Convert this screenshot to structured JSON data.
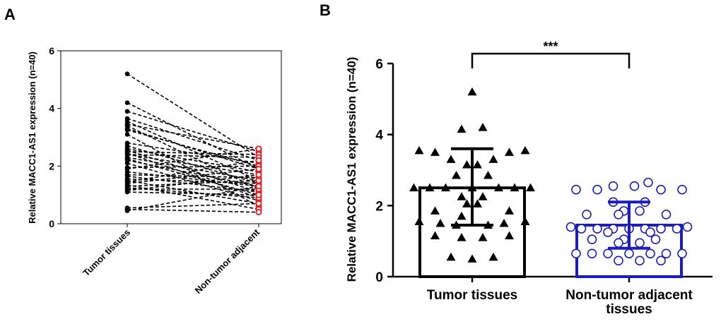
{
  "chart_data": [
    {
      "panel": "A",
      "type": "scatter",
      "title": "",
      "ylabel": "Relative MACC1-AS1 expression (n=40)",
      "categories": [
        "Tumor tissues",
        "Non-tumor adjacent"
      ],
      "ylim": [
        0,
        6
      ],
      "yticks": [
        0,
        2,
        4,
        6
      ],
      "series_colors": {
        "tumor": "#000000",
        "normal": "#e8141a"
      },
      "pairs": [
        [
          5.2,
          2.3
        ],
        [
          4.2,
          1.9
        ],
        [
          3.9,
          2.5
        ],
        [
          3.65,
          2.2
        ],
        [
          3.55,
          1.5
        ],
        [
          3.45,
          2.6
        ],
        [
          3.4,
          1.2
        ],
        [
          3.3,
          1.9
        ],
        [
          3.25,
          2.0
        ],
        [
          3.1,
          0.6
        ],
        [
          2.8,
          2.1
        ],
        [
          2.7,
          1.4
        ],
        [
          2.6,
          1.8
        ],
        [
          2.55,
          1.1
        ],
        [
          2.5,
          2.4
        ],
        [
          2.45,
          0.9
        ],
        [
          2.4,
          1.7
        ],
        [
          2.4,
          2.3
        ],
        [
          2.3,
          1.5
        ],
        [
          2.25,
          1.0
        ],
        [
          2.2,
          1.3
        ],
        [
          2.1,
          0.8
        ],
        [
          1.95,
          2.0
        ],
        [
          1.9,
          2.6
        ],
        [
          1.8,
          1.3
        ],
        [
          1.7,
          1.6
        ],
        [
          1.65,
          1.1
        ],
        [
          1.55,
          1.4
        ],
        [
          1.5,
          0.7
        ],
        [
          1.45,
          2.2
        ],
        [
          1.4,
          1.9
        ],
        [
          1.35,
          0.5
        ],
        [
          1.3,
          1.5
        ],
        [
          1.25,
          0.9
        ],
        [
          1.2,
          1.2
        ],
        [
          1.15,
          1.7
        ],
        [
          1.1,
          1.0
        ],
        [
          0.55,
          0.7
        ],
        [
          0.5,
          0.4
        ],
        [
          0.45,
          1.3
        ]
      ]
    },
    {
      "panel": "B",
      "type": "bar",
      "title": "",
      "ylabel": "Relative MACC1-AS1 expression (n=40)",
      "categories": [
        "Tumor tissues",
        "Non-tumor adjacent tissues"
      ],
      "category_lines": [
        [
          "Tumor tissues"
        ],
        [
          "Non-tumor adjacent",
          "tissues"
        ]
      ],
      "ylim": [
        0,
        6
      ],
      "yticks": [
        0,
        2,
        4,
        6
      ],
      "significance": "***",
      "series": [
        {
          "name": "Tumor tissues",
          "color": "#000000",
          "marker": "triangle",
          "mean": 2.5,
          "sd_low": 1.45,
          "sd_high": 3.6,
          "points": [
            [
              0,
              5.2
            ],
            [
              0.1,
              4.2
            ],
            [
              -0.1,
              4.15
            ],
            [
              -0.5,
              3.55
            ],
            [
              0.5,
              3.55
            ],
            [
              -0.35,
              3.5
            ],
            [
              0.35,
              3.5
            ],
            [
              -0.2,
              3.3
            ],
            [
              0.2,
              3.3
            ],
            [
              -0.05,
              3.15
            ],
            [
              0.05,
              3.15
            ],
            [
              -0.15,
              2.85
            ],
            [
              0.15,
              2.85
            ],
            [
              -0.55,
              2.5
            ],
            [
              0.55,
              2.5
            ],
            [
              -0.4,
              2.5
            ],
            [
              0.4,
              2.5
            ],
            [
              -0.25,
              2.5
            ],
            [
              0.25,
              2.5
            ],
            [
              0,
              2.5
            ],
            [
              -0.1,
              2.25
            ],
            [
              0.1,
              2.25
            ],
            [
              -0.05,
              2.05
            ],
            [
              0.05,
              2.05
            ],
            [
              -0.35,
              1.85
            ],
            [
              0.35,
              1.85
            ],
            [
              -0.1,
              1.7
            ],
            [
              -0.5,
              1.55
            ],
            [
              0.5,
              1.55
            ],
            [
              -0.3,
              1.5
            ],
            [
              0.3,
              1.5
            ],
            [
              -0.15,
              1.45
            ],
            [
              0.15,
              1.45
            ],
            [
              -0.35,
              1.15
            ],
            [
              0.35,
              1.15
            ],
            [
              -0.1,
              1.1
            ],
            [
              0.1,
              1.1
            ],
            [
              -0.2,
              0.55
            ],
            [
              0.2,
              0.55
            ],
            [
              0,
              0.5
            ]
          ]
        },
        {
          "name": "Non-tumor adjacent tissues",
          "color": "#1c1cbc",
          "marker": "circle",
          "mean": 1.45,
          "sd_low": 0.8,
          "sd_high": 2.1,
          "points": [
            [
              0.18,
              2.65
            ],
            [
              -0.5,
              2.45
            ],
            [
              0.5,
              2.45
            ],
            [
              -0.3,
              2.45
            ],
            [
              0.3,
              2.45
            ],
            [
              -0.15,
              2.55
            ],
            [
              0.05,
              2.55
            ],
            [
              -0.15,
              2.1
            ],
            [
              0.15,
              2.1
            ],
            [
              -0.05,
              1.85
            ],
            [
              0.1,
              1.85
            ],
            [
              -0.4,
              1.75
            ],
            [
              -0.1,
              1.75
            ],
            [
              0.35,
              1.75
            ],
            [
              -0.55,
              1.4
            ],
            [
              0.55,
              1.4
            ],
            [
              -0.45,
              1.35
            ],
            [
              -0.3,
              1.35
            ],
            [
              -0.15,
              1.35
            ],
            [
              0,
              1.35
            ],
            [
              0.15,
              1.35
            ],
            [
              0.3,
              1.35
            ],
            [
              0.45,
              1.35
            ],
            [
              -0.2,
              1.25
            ],
            [
              0.2,
              1.25
            ],
            [
              -0.35,
              1.05
            ],
            [
              -0.05,
              1.05
            ],
            [
              0.25,
              1.05
            ],
            [
              -0.1,
              0.95
            ],
            [
              0.1,
              0.95
            ],
            [
              -0.5,
              0.65
            ],
            [
              0.5,
              0.65
            ],
            [
              -0.35,
              0.65
            ],
            [
              0.35,
              0.65
            ],
            [
              -0.2,
              0.65
            ],
            [
              0.2,
              0.65
            ],
            [
              0,
              0.65
            ],
            [
              -0.1,
              0.45
            ],
            [
              0.1,
              0.45
            ],
            [
              0.3,
              0.45
            ]
          ]
        }
      ]
    }
  ]
}
